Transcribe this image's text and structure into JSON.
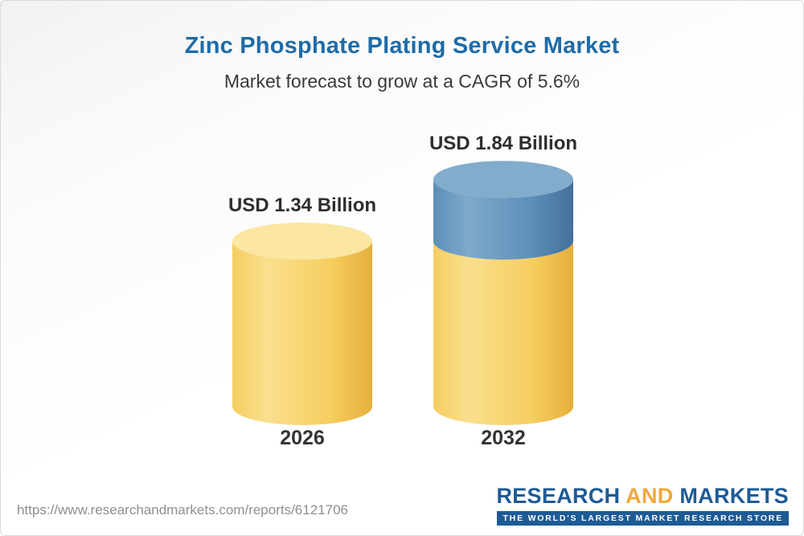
{
  "header": {
    "title": "Zinc Phosphate Plating Service Market",
    "subtitle": "Market forecast to grow at a CAGR of 5.6%"
  },
  "chart_data": {
    "type": "bar",
    "variant": "3d-cylinder",
    "title": "Zinc Phosphate Plating Service Market",
    "subtitle": "Market forecast to grow at a CAGR of 5.6%",
    "cagr_percent": 5.6,
    "unit": "USD Billion",
    "categories": [
      "2026",
      "2032"
    ],
    "values": [
      1.34,
      1.84
    ],
    "value_labels": [
      "USD 1.34 Billion",
      "USD 1.84 Billion"
    ],
    "legend": "none",
    "grid": false,
    "colors": {
      "base": "#F6CE60",
      "base_light": "#FADF8E",
      "base_dark": "#E6AF3C",
      "base_top": "#FBE6A2",
      "growth": "#5C8FB9",
      "growth_light": "#7FA9CB",
      "growth_dark": "#44719B",
      "growth_top": "#82ACCC",
      "title_blue": "#1E6CA9",
      "logo_blue": "#1D5B96",
      "logo_gold": "#EFA93A"
    }
  },
  "footer": {
    "url": "https://www.researchandmarkets.com/reports/6121706",
    "logo": {
      "research": "RESEARCH",
      "and": "AND",
      "markets": "MARKETS",
      "tagline": "THE WORLD'S LARGEST MARKET RESEARCH STORE"
    }
  }
}
